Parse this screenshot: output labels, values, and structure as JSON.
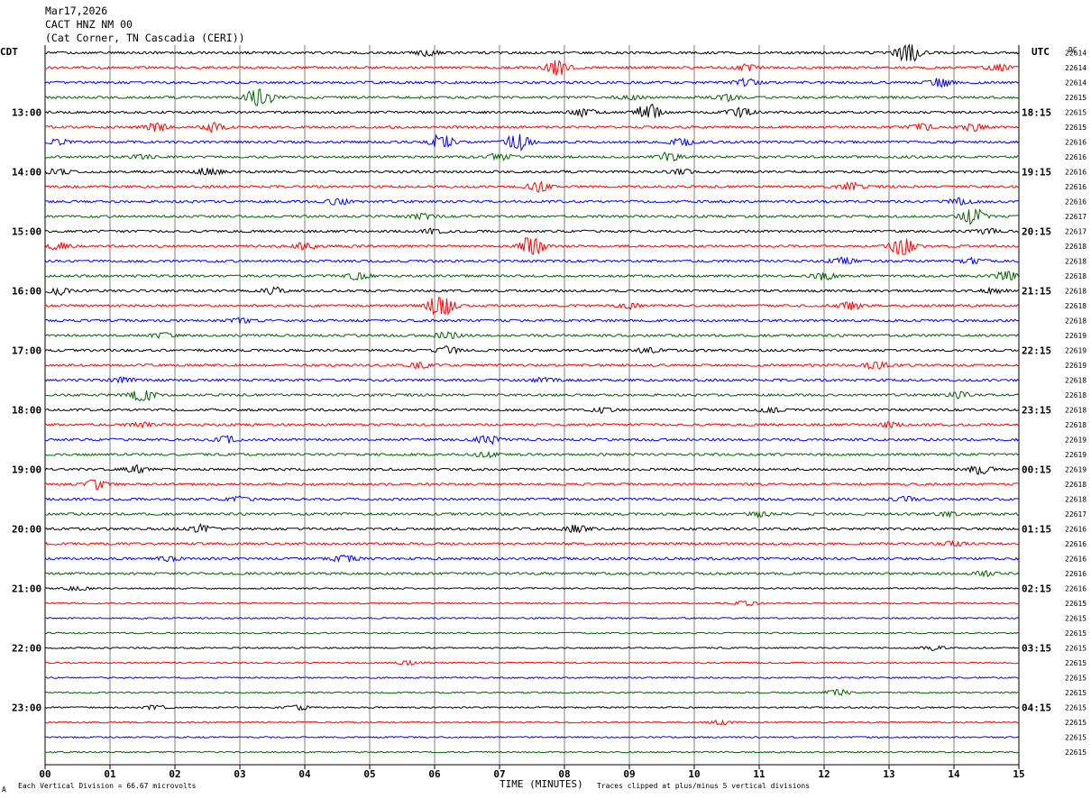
{
  "header": {
    "date": "Mar17,2026",
    "station": "CACT HNZ NM 00",
    "location": "(Cat Corner, TN Cascadia (CERI))"
  },
  "left_tz": "CDT",
  "right_tz": "UTC",
  "dc_label": "DC",
  "footer": {
    "scale_note": "Each Vertical Division =   66.67 microvolts",
    "x_title": "TIME (MINUTES)",
    "clip_note": "Traces clipped at plus/minus 5 vertical divisions",
    "corner_mark": "A"
  },
  "colors": {
    "trace_cycle": [
      "#000000",
      "#ff0000",
      "#0000ff",
      "#006400"
    ],
    "grid": "#7f7f7f"
  },
  "chart_data": {
    "type": "line",
    "title": "",
    "xlabel": "TIME (MINUTES)",
    "xlim": [
      0,
      15
    ],
    "x_ticks": [
      "00",
      "01",
      "02",
      "03",
      "04",
      "05",
      "06",
      "07",
      "08",
      "09",
      "10",
      "11",
      "12",
      "13",
      "14",
      "15"
    ],
    "minutes_per_line": 15,
    "line_count": 48,
    "left_hour_labels": [
      "13:00",
      "14:00",
      "15:00",
      "16:00",
      "17:00",
      "18:00",
      "19:00",
      "20:00",
      "21:00",
      "22:00",
      "23:00"
    ],
    "right_hour_labels": [
      "18:15",
      "19:15",
      "20:15",
      "21:15",
      "22:15",
      "23:15",
      "00:15",
      "01:15",
      "02:15",
      "03:15",
      "04:15"
    ],
    "dc_values": [
      "22614",
      "22614",
      "22614",
      "22615",
      "22615",
      "22615",
      "22616",
      "22616",
      "22616",
      "22616",
      "22616",
      "22617",
      "22617",
      "22618",
      "22618",
      "22618",
      "22618",
      "22618",
      "22618",
      "22619",
      "22619",
      "22619",
      "22618",
      "22618",
      "22618",
      "22618",
      "22619",
      "22619",
      "22619",
      "22618",
      "22618",
      "22617",
      "22616",
      "22616",
      "22616",
      "22616",
      "22616",
      "22615",
      "22615",
      "22615",
      "22615",
      "22615",
      "22615",
      "22615",
      "22615",
      "22615",
      "22615",
      "22615"
    ],
    "events": [
      {
        "line": 0,
        "minute": 13.3,
        "amp": 9
      },
      {
        "line": 0,
        "minute": 5.9,
        "amp": 2.5
      },
      {
        "line": 1,
        "minute": 7.9,
        "amp": 6
      },
      {
        "line": 1,
        "minute": 10.8,
        "amp": 2.5
      },
      {
        "line": 1,
        "minute": 14.7,
        "amp": 2.5
      },
      {
        "line": 2,
        "minute": 10.8,
        "amp": 3
      },
      {
        "line": 2,
        "minute": 13.8,
        "amp": 4
      },
      {
        "line": 3,
        "minute": 3.3,
        "amp": 10
      },
      {
        "line": 3,
        "minute": 10.5,
        "amp": 3.5
      },
      {
        "line": 3,
        "minute": 9.0,
        "amp": 2
      },
      {
        "line": 4,
        "minute": 9.3,
        "amp": 7
      },
      {
        "line": 4,
        "minute": 10.7,
        "amp": 4
      },
      {
        "line": 4,
        "minute": 8.3,
        "amp": 3
      },
      {
        "line": 5,
        "minute": 1.7,
        "amp": 4.5
      },
      {
        "line": 5,
        "minute": 2.6,
        "amp": 4
      },
      {
        "line": 5,
        "minute": 13.5,
        "amp": 3
      },
      {
        "line": 5,
        "minute": 14.3,
        "amp": 3
      },
      {
        "line": 6,
        "minute": 6.1,
        "amp": 7
      },
      {
        "line": 6,
        "minute": 7.3,
        "amp": 8
      },
      {
        "line": 6,
        "minute": 9.8,
        "amp": 3
      },
      {
        "line": 6,
        "minute": 0.2,
        "amp": 2
      },
      {
        "line": 7,
        "minute": 7.0,
        "amp": 3
      },
      {
        "line": 7,
        "minute": 9.6,
        "amp": 4
      },
      {
        "line": 7,
        "minute": 1.5,
        "amp": 2
      },
      {
        "line": 8,
        "minute": 2.5,
        "amp": 4
      },
      {
        "line": 8,
        "minute": 0.2,
        "amp": 2.5
      },
      {
        "line": 8,
        "minute": 9.8,
        "amp": 2
      },
      {
        "line": 9,
        "minute": 7.6,
        "amp": 4
      },
      {
        "line": 9,
        "minute": 12.4,
        "amp": 3
      },
      {
        "line": 10,
        "minute": 4.5,
        "amp": 3
      },
      {
        "line": 10,
        "minute": 14.1,
        "amp": 3
      },
      {
        "line": 11,
        "minute": 14.3,
        "amp": 7
      },
      {
        "line": 11,
        "minute": 5.8,
        "amp": 2
      },
      {
        "line": 12,
        "minute": 6.0,
        "amp": 2
      },
      {
        "line": 12,
        "minute": 14.5,
        "amp": 2
      },
      {
        "line": 13,
        "minute": 7.5,
        "amp": 9
      },
      {
        "line": 13,
        "minute": 13.2,
        "amp": 8
      },
      {
        "line": 13,
        "minute": 4.0,
        "amp": 3
      },
      {
        "line": 13,
        "minute": 0.2,
        "amp": 3
      },
      {
        "line": 14,
        "minute": 12.3,
        "amp": 3
      },
      {
        "line": 14,
        "minute": 14.3,
        "amp": 2.5
      },
      {
        "line": 15,
        "minute": 4.8,
        "amp": 3
      },
      {
        "line": 15,
        "minute": 12.0,
        "amp": 3
      },
      {
        "line": 15,
        "minute": 14.8,
        "amp": 4
      },
      {
        "line": 16,
        "minute": 0.2,
        "amp": 3
      },
      {
        "line": 16,
        "minute": 3.5,
        "amp": 3
      },
      {
        "line": 16,
        "minute": 14.6,
        "amp": 2
      },
      {
        "line": 17,
        "minute": 6.1,
        "amp": 11
      },
      {
        "line": 17,
        "minute": 12.4,
        "amp": 3.5
      },
      {
        "line": 17,
        "minute": 9.0,
        "amp": 2
      },
      {
        "line": 18,
        "minute": 3.0,
        "amp": 2
      },
      {
        "line": 19,
        "minute": 6.2,
        "amp": 3
      },
      {
        "line": 19,
        "minute": 1.8,
        "amp": 2
      },
      {
        "line": 20,
        "minute": 6.2,
        "amp": 3
      },
      {
        "line": 20,
        "minute": 9.3,
        "amp": 2.5
      },
      {
        "line": 21,
        "minute": 12.8,
        "amp": 4
      },
      {
        "line": 21,
        "minute": 5.8,
        "amp": 2.5
      },
      {
        "line": 22,
        "minute": 1.2,
        "amp": 2
      },
      {
        "line": 22,
        "minute": 7.7,
        "amp": 2
      },
      {
        "line": 23,
        "minute": 1.5,
        "amp": 5
      },
      {
        "line": 23,
        "minute": 14.1,
        "amp": 2.5
      },
      {
        "line": 24,
        "minute": 8.6,
        "amp": 2
      },
      {
        "line": 24,
        "minute": 11.2,
        "amp": 2
      },
      {
        "line": 25,
        "minute": 1.5,
        "amp": 2
      },
      {
        "line": 25,
        "minute": 13.0,
        "amp": 2
      },
      {
        "line": 26,
        "minute": 2.8,
        "amp": 3
      },
      {
        "line": 26,
        "minute": 6.8,
        "amp": 4
      },
      {
        "line": 27,
        "minute": 6.8,
        "amp": 2
      },
      {
        "line": 28,
        "minute": 14.4,
        "amp": 4
      },
      {
        "line": 28,
        "minute": 1.4,
        "amp": 3
      },
      {
        "line": 29,
        "minute": 0.8,
        "amp": 4
      },
      {
        "line": 30,
        "minute": 13.2,
        "amp": 2.5
      },
      {
        "line": 30,
        "minute": 3.0,
        "amp": 2
      },
      {
        "line": 31,
        "minute": 11.0,
        "amp": 2
      },
      {
        "line": 31,
        "minute": 13.9,
        "amp": 2
      },
      {
        "line": 32,
        "minute": 2.4,
        "amp": 3
      },
      {
        "line": 32,
        "minute": 8.2,
        "amp": 3
      },
      {
        "line": 33,
        "minute": 14.0,
        "amp": 2
      },
      {
        "line": 34,
        "minute": 4.6,
        "amp": 3
      },
      {
        "line": 34,
        "minute": 1.9,
        "amp": 2
      },
      {
        "line": 35,
        "minute": 14.5,
        "amp": 2
      },
      {
        "line": 36,
        "minute": 0.5,
        "amp": 2
      },
      {
        "line": 37,
        "minute": 10.8,
        "amp": 2
      },
      {
        "line": 40,
        "minute": 13.7,
        "amp": 2
      },
      {
        "line": 41,
        "minute": 5.6,
        "amp": 2
      },
      {
        "line": 43,
        "minute": 12.2,
        "amp": 3
      },
      {
        "line": 44,
        "minute": 1.7,
        "amp": 2
      },
      {
        "line": 44,
        "minute": 3.9,
        "amp": 2
      },
      {
        "line": 45,
        "minute": 10.4,
        "amp": 2
      }
    ]
  }
}
